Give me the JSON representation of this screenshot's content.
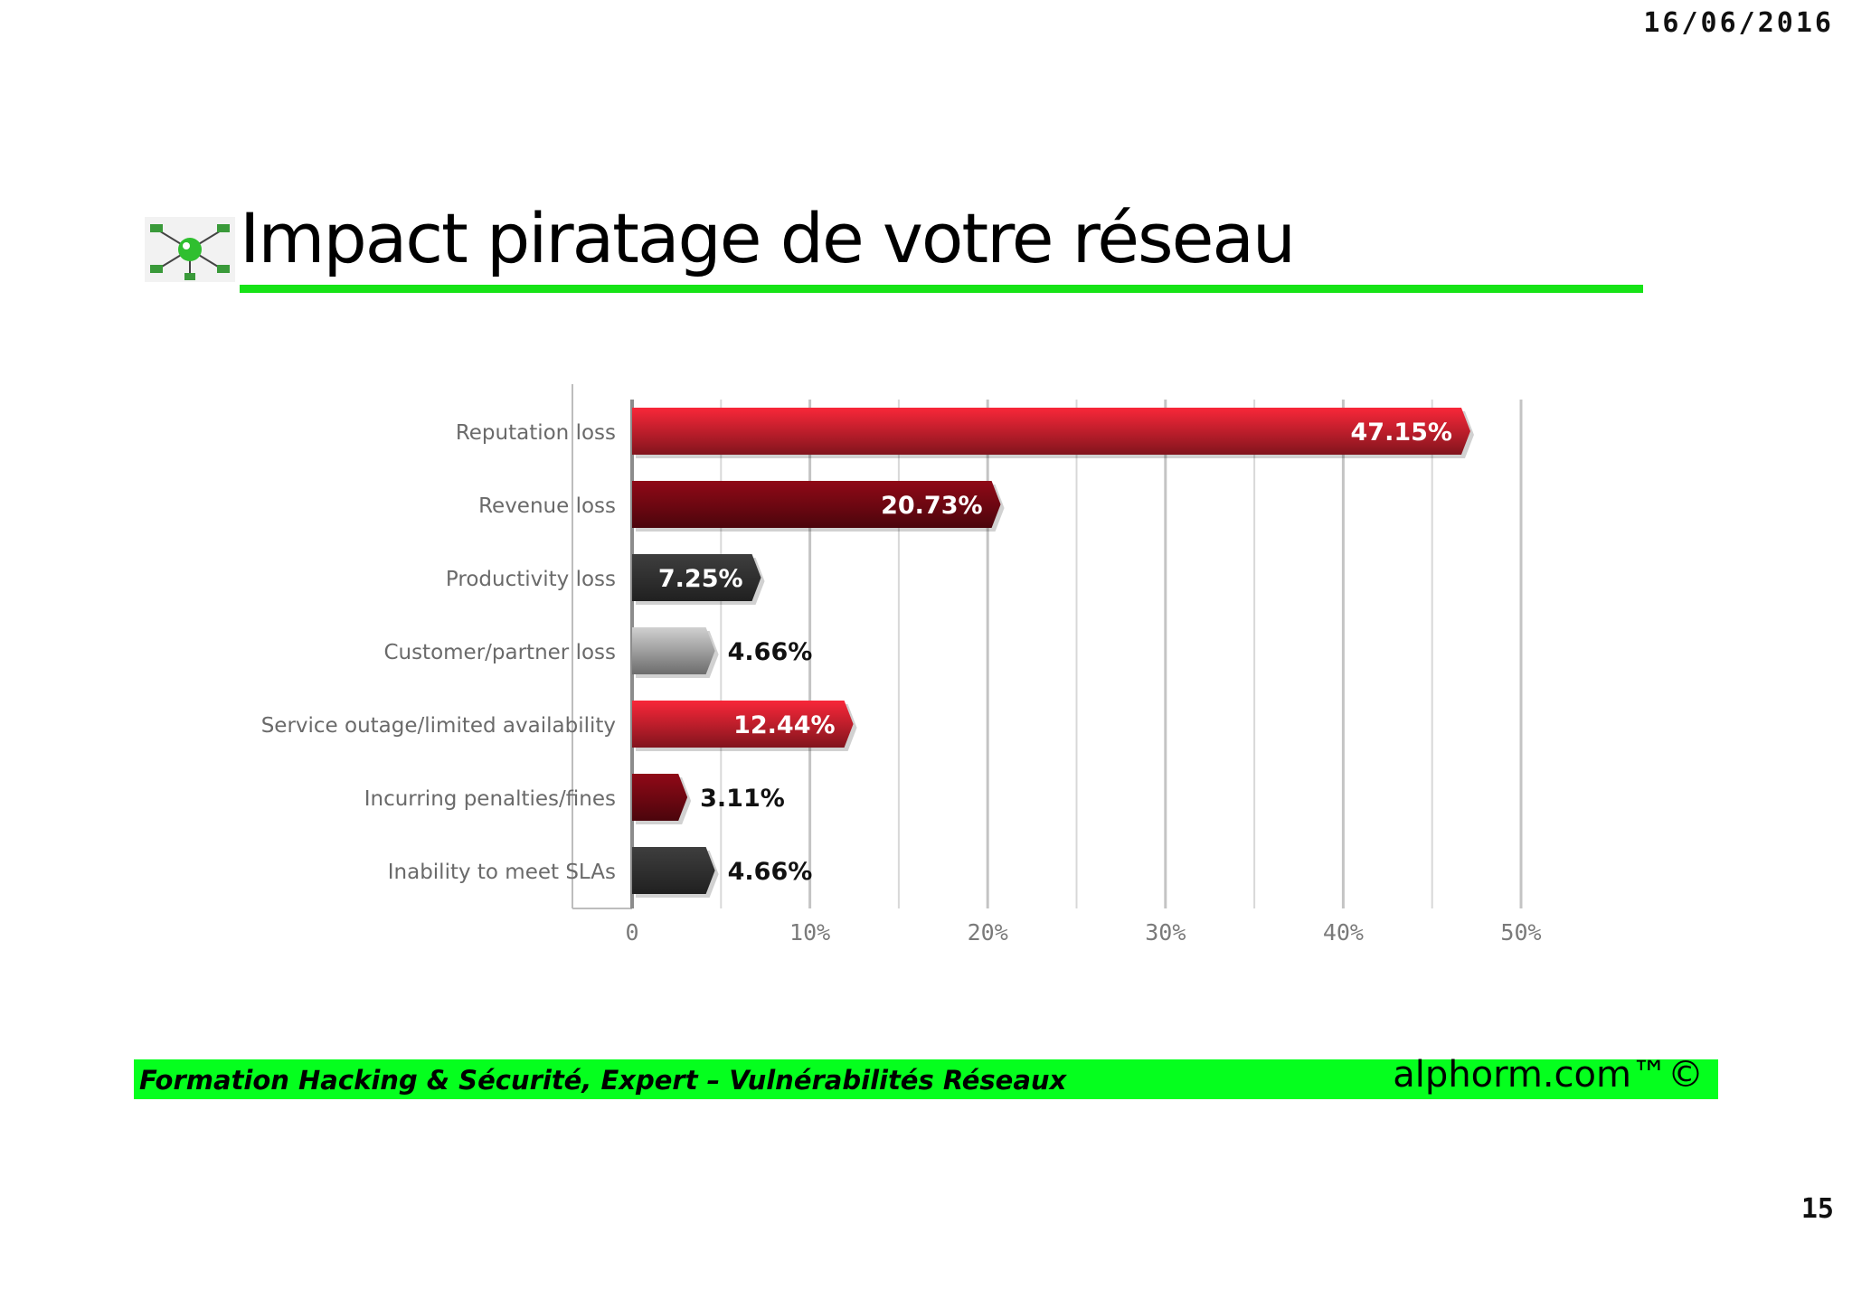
{
  "header": {
    "date": "16/06/2016"
  },
  "slide": {
    "title": "Impact piratage de votre réseau",
    "page_number": "15"
  },
  "footer": {
    "course": "Formation Hacking & Sécurité, Expert – Vulnérabilités Réseaux",
    "brand": "alphorm.com™©"
  },
  "colors": {
    "accent_green": "#16e316",
    "footer_green": "#05ff1e",
    "red": "#b81d2a",
    "dark_red": "#6b0711",
    "dark_gray": "#2e2e2e",
    "light_gray": "#9a9a9a"
  },
  "chart_data": {
    "type": "bar",
    "orientation": "horizontal",
    "title": "",
    "xlabel": "",
    "ylabel": "",
    "categories": [
      "Reputation loss",
      "Revenue loss",
      "Productivity loss",
      "Customer/partner loss",
      "Service outage/limited availability",
      "Incurring penalties/fines",
      "Inability to meet SLAs"
    ],
    "values": [
      47.15,
      20.73,
      7.25,
      4.66,
      12.44,
      3.11,
      4.66
    ],
    "value_labels": [
      "47.15%",
      "20.73%",
      "7.25%",
      "4.66%",
      "12.44%",
      "3.11%",
      "4.66%"
    ],
    "bar_colors": [
      "#b81d2a",
      "#6b0711",
      "#2e2e2e",
      "#9a9a9a",
      "#b81d2a",
      "#6b0711",
      "#2e2e2e"
    ],
    "xlim": [
      0,
      50
    ],
    "xticks": [
      0,
      10,
      20,
      30,
      40,
      50
    ],
    "xtick_labels": [
      "0",
      "10%",
      "20%",
      "30%",
      "40%",
      "50%"
    ],
    "grid": true,
    "legend": "none"
  }
}
